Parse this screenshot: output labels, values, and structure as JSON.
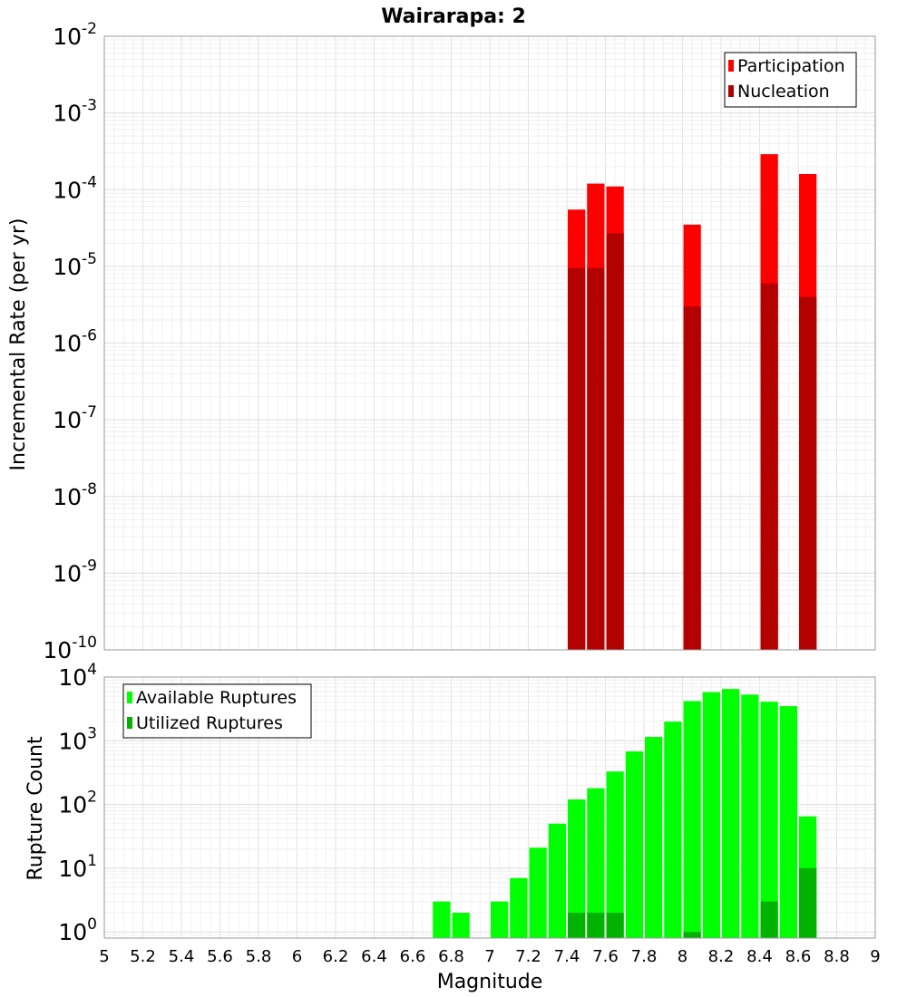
{
  "chart_data": [
    {
      "type": "bar",
      "title": "Wairarapa: 2",
      "ylabel": "Incremental Rate (per yr)",
      "xlabel": "",
      "yscale": "log",
      "xlim": [
        5,
        9
      ],
      "ylim": [
        1e-10,
        0.01
      ],
      "y_ticks": [
        {
          "base": "10",
          "exp": "-10"
        },
        {
          "base": "10",
          "exp": "-9"
        },
        {
          "base": "10",
          "exp": "-8"
        },
        {
          "base": "10",
          "exp": "-7"
        },
        {
          "base": "10",
          "exp": "-6"
        },
        {
          "base": "10",
          "exp": "-5"
        },
        {
          "base": "10",
          "exp": "-4"
        },
        {
          "base": "10",
          "exp": "-3"
        },
        {
          "base": "10",
          "exp": "-2"
        }
      ],
      "grid": true,
      "legend_position": "top-right",
      "bar_width": 0.1,
      "series": [
        {
          "name": "Participation",
          "color": "#ff0000",
          "x": [
            7.45,
            7.55,
            7.65,
            8.05,
            8.45,
            8.65
          ],
          "values": [
            5.5e-05,
            0.00012,
            0.00011,
            3.5e-05,
            0.00029,
            0.00016
          ]
        },
        {
          "name": "Nucleation",
          "color": "#b30000",
          "x": [
            7.45,
            7.55,
            7.65,
            8.05,
            8.45,
            8.65
          ],
          "values": [
            9.5e-06,
            9.5e-06,
            2.7e-05,
            3e-06,
            6e-06,
            4e-06
          ]
        }
      ]
    },
    {
      "type": "bar",
      "title": "",
      "ylabel": "Rupture Count",
      "xlabel": "Magnitude",
      "yscale": "log",
      "xlim": [
        5,
        9
      ],
      "ylim": [
        0.8,
        10000
      ],
      "x_ticks": [
        "5",
        "5.2",
        "5.4",
        "5.6",
        "5.8",
        "6",
        "6.2",
        "6.4",
        "6.6",
        "6.8",
        "7",
        "7.2",
        "7.4",
        "7.6",
        "7.8",
        "8",
        "8.2",
        "8.4",
        "8.6",
        "8.8",
        "9"
      ],
      "y_ticks": [
        {
          "base": "10",
          "exp": "0"
        },
        {
          "base": "10",
          "exp": "1"
        },
        {
          "base": "10",
          "exp": "2"
        },
        {
          "base": "10",
          "exp": "3"
        },
        {
          "base": "10",
          "exp": "4"
        }
      ],
      "grid": true,
      "legend_position": "top-left",
      "bar_width": 0.1,
      "series": [
        {
          "name": "Available Ruptures",
          "color": "#00ff00",
          "x": [
            6.75,
            6.85,
            7.05,
            7.15,
            7.25,
            7.35,
            7.45,
            7.55,
            7.65,
            7.75,
            7.85,
            7.95,
            8.05,
            8.15,
            8.25,
            8.35,
            8.45,
            8.55,
            8.65
          ],
          "values": [
            3,
            2,
            3,
            7,
            21,
            50,
            120,
            180,
            330,
            680,
            1150,
            2000,
            4200,
            5800,
            6500,
            5300,
            4100,
            3500,
            65
          ]
        },
        {
          "name": "Utilized Ruptures",
          "color": "#00b300",
          "x": [
            7.45,
            7.55,
            7.65,
            8.05,
            8.45,
            8.65
          ],
          "values": [
            2,
            2,
            2,
            1,
            3,
            10
          ]
        }
      ]
    }
  ]
}
